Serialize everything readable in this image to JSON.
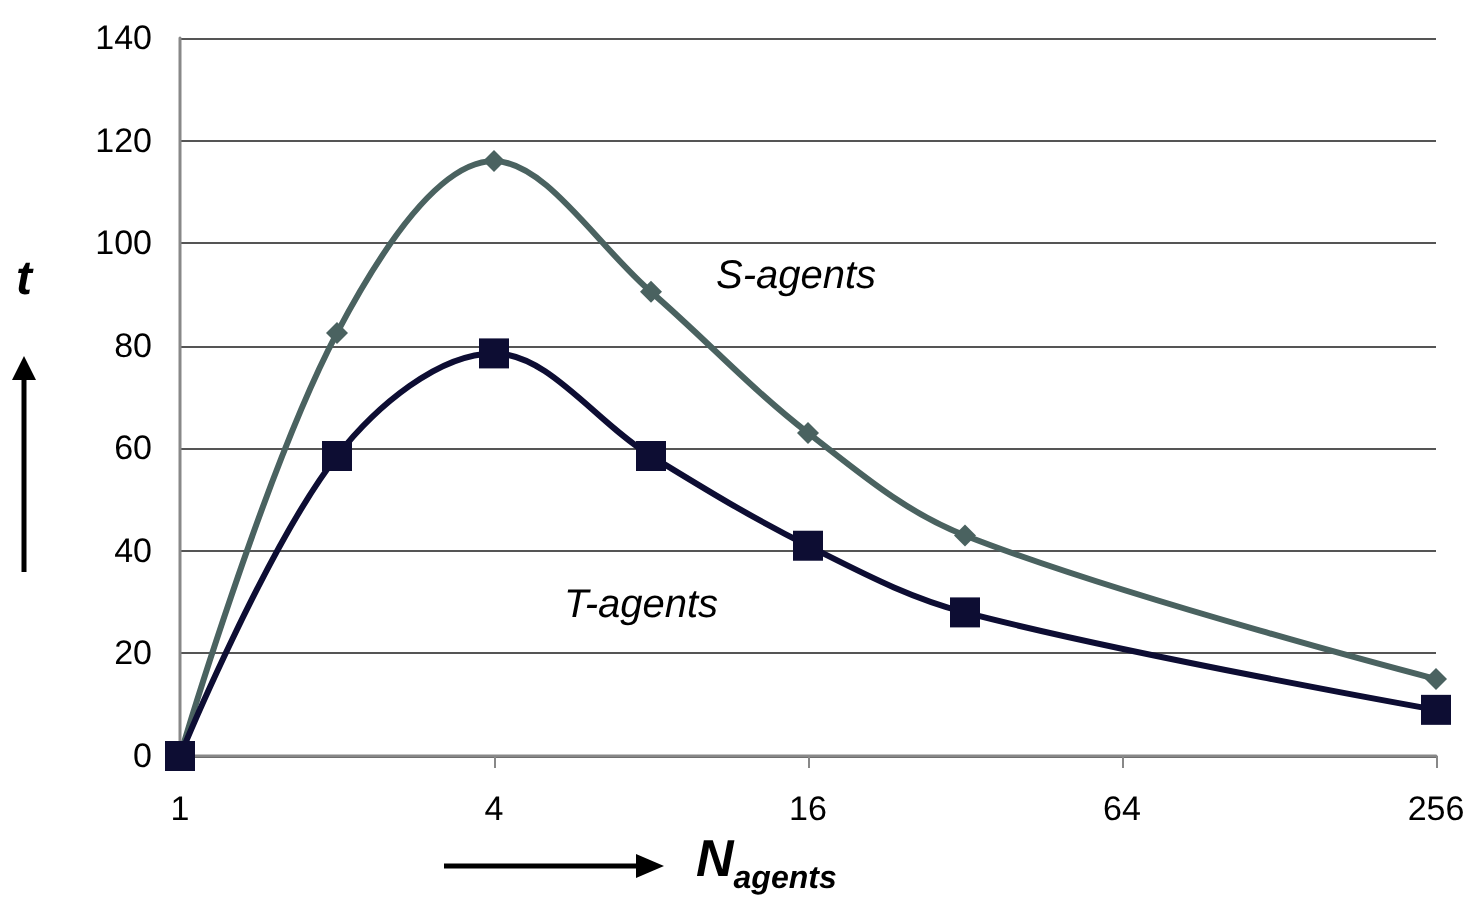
{
  "chart_data": {
    "type": "line",
    "xlabel": "N$_{agents}$",
    "ylabel": "t",
    "x": [
      1,
      2,
      4,
      8,
      16,
      32,
      256
    ],
    "series": [
      {
        "name": "S-agents",
        "color": "#4a6260",
        "marker": "diamond",
        "values": [
          0,
          82.5,
          116,
          90.5,
          63,
          43,
          15
        ]
      },
      {
        "name": "T-agents",
        "color": "#0d0d33",
        "marker": "square",
        "values": [
          0,
          58.5,
          78.5,
          58.5,
          41,
          28,
          9
        ]
      }
    ],
    "log": "x",
    "xlim": [
      1,
      256
    ],
    "xticks": [
      1,
      4,
      16,
      64,
      256
    ],
    "ylim": [
      0,
      140
    ],
    "yticks": [
      0,
      20,
      40,
      60,
      80,
      100,
      120,
      140
    ],
    "grid": "y",
    "legend": false,
    "line_style": "solid"
  }
}
